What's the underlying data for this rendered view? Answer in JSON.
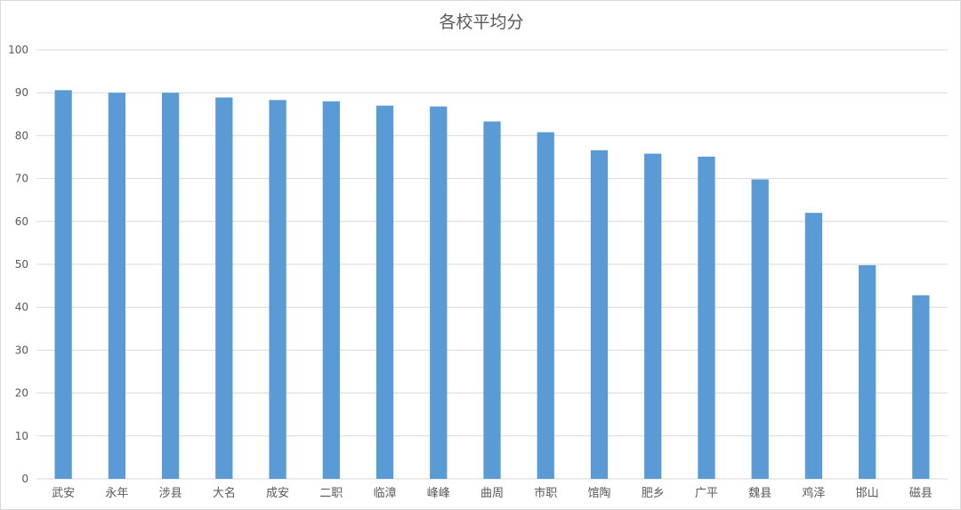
{
  "chart_data": {
    "type": "bar",
    "title": "各校平均分",
    "xlabel": "",
    "ylabel": "",
    "categories": [
      "武安",
      "永年",
      "涉县",
      "大名",
      "成安",
      "二职",
      "临漳",
      "峰峰",
      "曲周",
      "市职",
      "馆陶",
      "肥乡",
      "广平",
      "魏县",
      "鸡泽",
      "邯山",
      "磁县"
    ],
    "values": [
      90.6,
      90.0,
      90.0,
      88.9,
      88.3,
      88.0,
      87.0,
      86.8,
      83.3,
      80.8,
      76.6,
      75.8,
      75.1,
      69.8,
      62.0,
      49.8,
      42.8
    ],
    "ylim": [
      0,
      100
    ],
    "yticks": [
      0,
      10,
      20,
      30,
      40,
      50,
      60,
      70,
      80,
      90,
      100
    ],
    "grid": true,
    "legend": "none",
    "bar_color": "#5b9bd5",
    "grid_color": "#d9d9d9",
    "text_color": "#595959"
  }
}
